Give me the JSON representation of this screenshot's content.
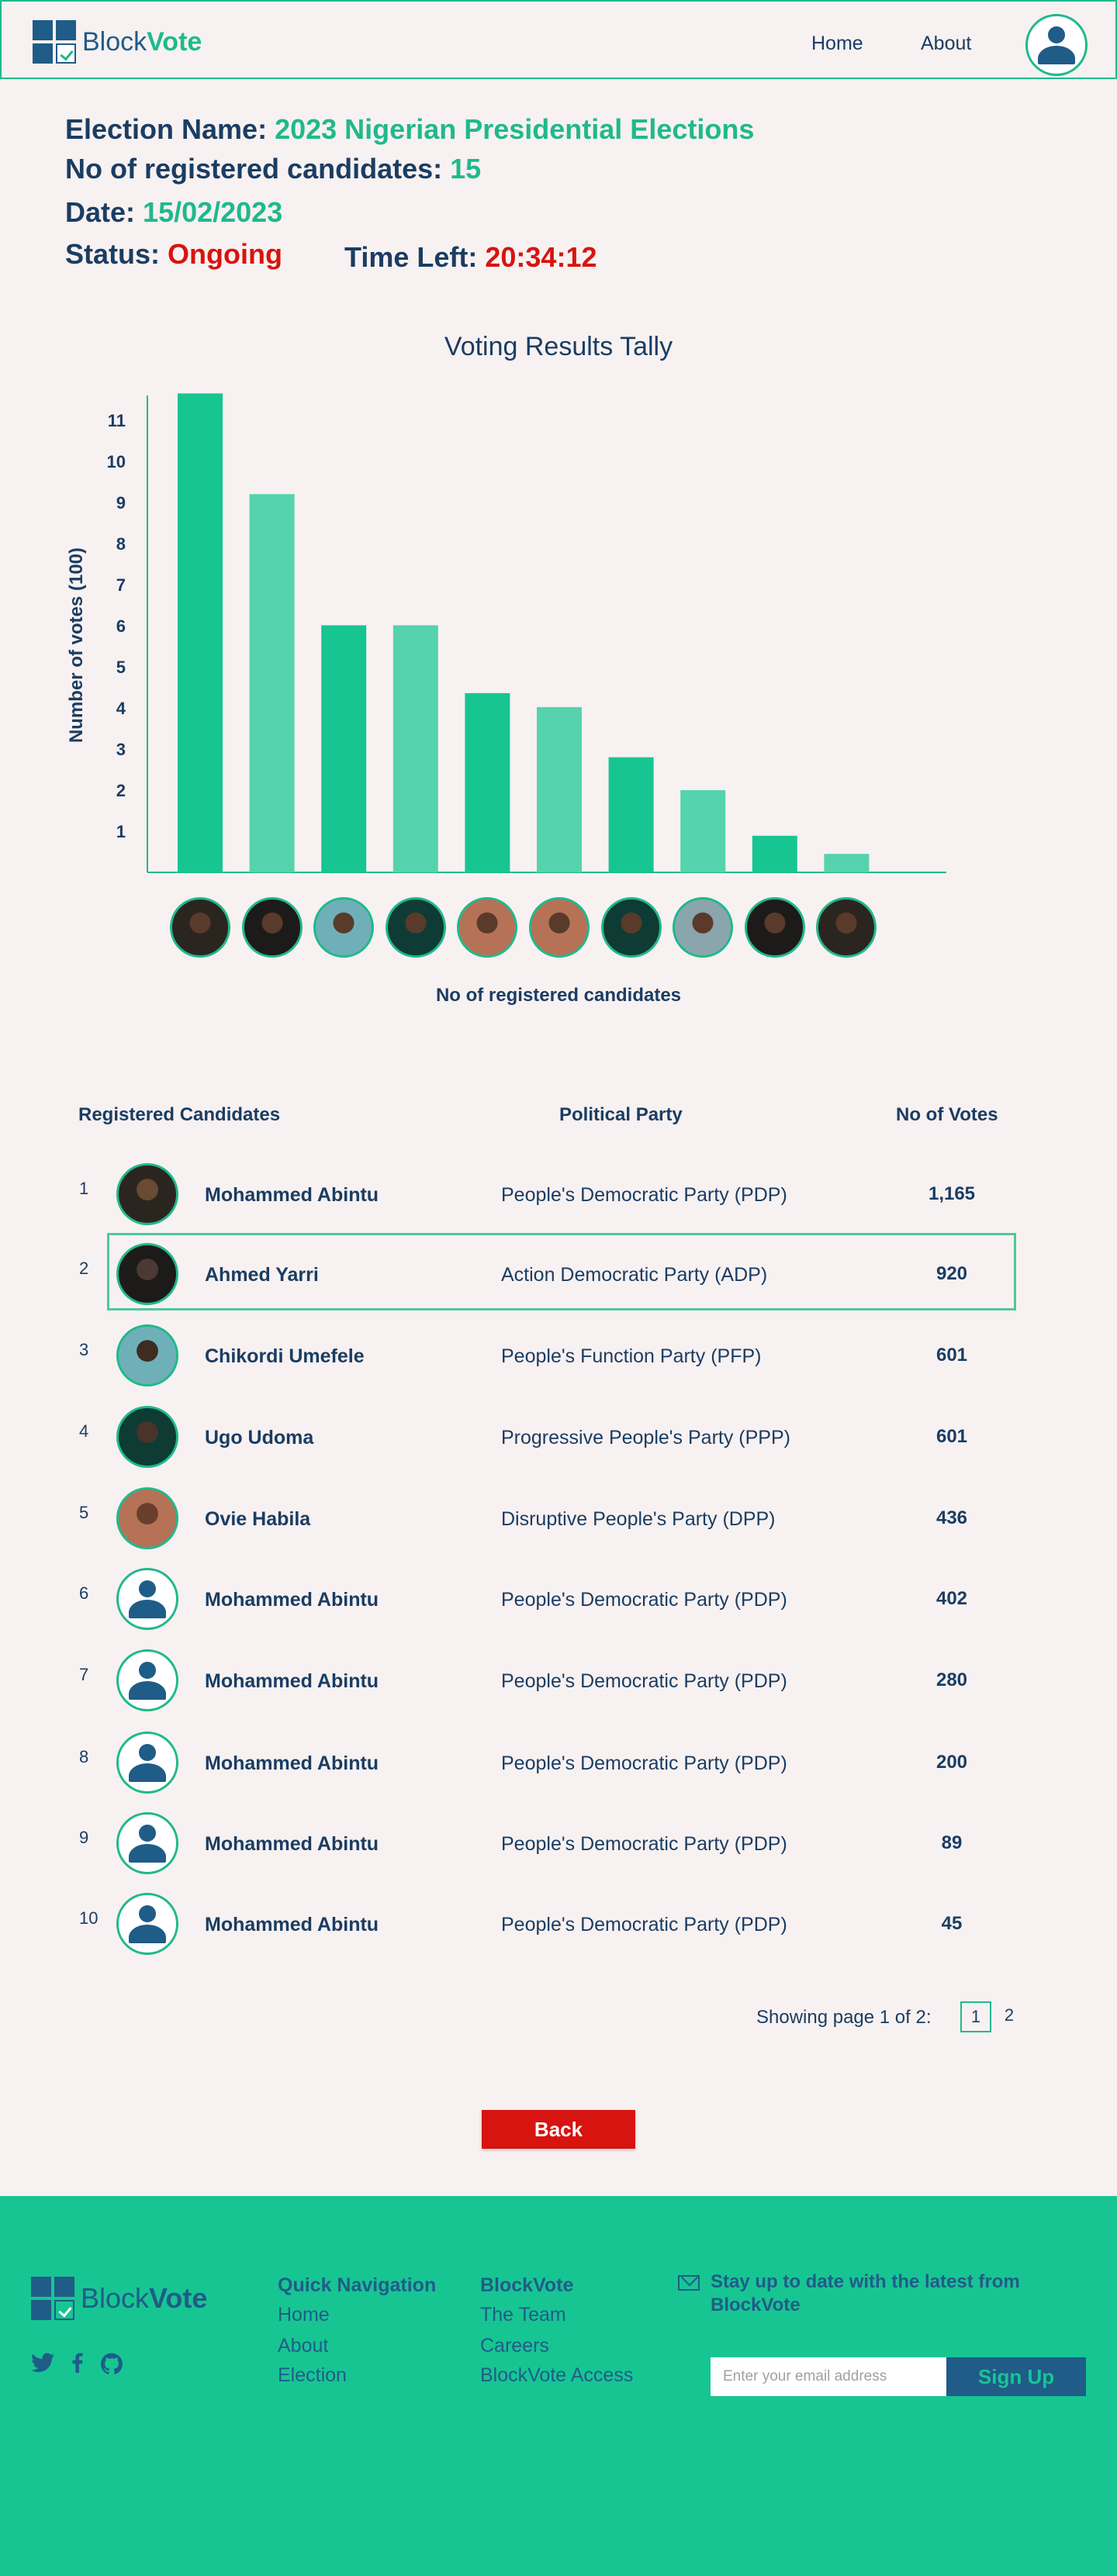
{
  "nav": {
    "logo": {
      "part1": "Block",
      "part2": "Vote"
    },
    "home": "Home",
    "about": "About"
  },
  "election": {
    "name_label": "Election Name:",
    "name_value": "2023 Nigerian Presidential Elections",
    "count_label": "No of registered candidates:",
    "count_value": "15",
    "date_label": "Date:",
    "date_value": "15/02/2023",
    "status_label": "Status:",
    "status_value": "Ongoing",
    "time_label": "Time Left:",
    "time_value": "20:34:12"
  },
  "chart_data": {
    "type": "bar",
    "title": "Voting Results Tally",
    "ylabel": "Number of votes (100)",
    "xlabel": "No of registered candidates",
    "yticks": [
      "1",
      "2",
      "3",
      "4",
      "5",
      "6",
      "7",
      "8",
      "9",
      "10",
      "11"
    ],
    "ylim": [
      0,
      11.6
    ],
    "categories": [
      "Mohammed Abintu",
      "Ahmed Yarri",
      "Chikordi Umefele",
      "Ugo Udoma",
      "Ovie Habila",
      "6",
      "7",
      "8",
      "9",
      "10"
    ],
    "values": [
      11.65,
      9.2,
      6.01,
      6.01,
      4.36,
      4.02,
      2.8,
      2.0,
      0.89,
      0.45
    ],
    "colors": [
      "#17c593",
      "#55d3ae"
    ],
    "grid": false
  },
  "table": {
    "headers": [
      "Registered Candidates",
      "Political Party",
      "No of Votes"
    ],
    "rows": [
      {
        "num": "1",
        "name": "Mohammed Abintu",
        "party": "People's Democratic Party (PDP)",
        "votes": "1,165",
        "avatar": "photo"
      },
      {
        "num": "2",
        "name": "Ahmed Yarri",
        "party": "Action Democratic Party (ADP)",
        "votes": "920",
        "avatar": "photo"
      },
      {
        "num": "3",
        "name": "Chikordi Umefele",
        "party": "People's Function Party (PFP)",
        "votes": "601",
        "avatar": "photo"
      },
      {
        "num": "4",
        "name": "Ugo Udoma",
        "party": "Progressive People's Party (PPP)",
        "votes": "601",
        "avatar": "photo"
      },
      {
        "num": "5",
        "name": "Ovie Habila",
        "party": "Disruptive People's Party (DPP)",
        "votes": "436",
        "avatar": "photo"
      },
      {
        "num": "6",
        "name": "Mohammed Abintu",
        "party": "People's Democratic Party (PDP)",
        "votes": "402",
        "avatar": "person-icon"
      },
      {
        "num": "7",
        "name": "Mohammed Abintu",
        "party": "People's Democratic Party (PDP)",
        "votes": "280",
        "avatar": "person-icon"
      },
      {
        "num": "8",
        "name": "Mohammed Abintu",
        "party": "People's Democratic Party (PDP)",
        "votes": "200",
        "avatar": "person-icon"
      },
      {
        "num": "9",
        "name": "Mohammed Abintu",
        "party": "People's Democratic Party (PDP)",
        "votes": "89",
        "avatar": "person-icon"
      },
      {
        "num": "10",
        "name": "Mohammed Abintu",
        "party": "People's Democratic Party (PDP)",
        "votes": "45",
        "avatar": "person-icon"
      }
    ]
  },
  "pagination": {
    "text": "Showing page 1 of 2:",
    "page1": "1",
    "page2": "2"
  },
  "back_label": "Back",
  "footer": {
    "logo": {
      "part1": "Block",
      "part2": "Vote"
    },
    "quick_nav": {
      "heading": "Quick Navigation",
      "items": [
        "Home",
        "About",
        "Election"
      ]
    },
    "blockvote": {
      "heading": "BlockVote",
      "items": [
        "The Team",
        "Careers",
        "BlockVote Access"
      ]
    },
    "newsletter_text": "Stay up to date with the latest from BlockVote",
    "email_placeholder": "Enter your email address",
    "signup_label": "Sign Up"
  },
  "icons": {
    "twitter": "twitter-icon",
    "facebook": "facebook-icon",
    "github": "github-icon",
    "mail": "mail-icon",
    "user": "user-icon"
  }
}
